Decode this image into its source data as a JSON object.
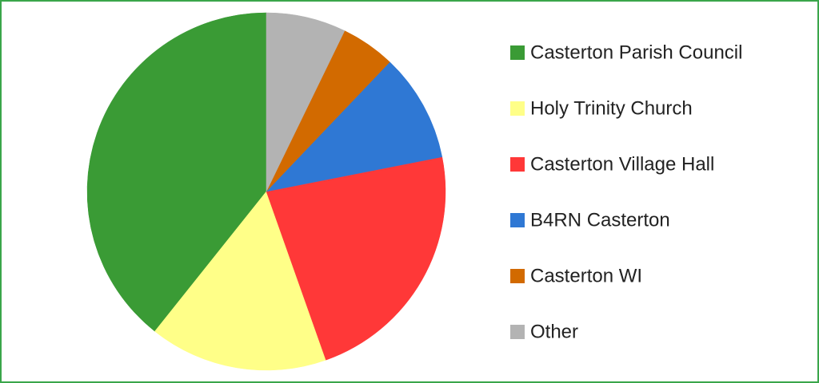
{
  "chart_data": {
    "type": "pie",
    "categories": [
      "Casterton Parish Council",
      "Holy Trinity Church",
      "Casterton Village Hall",
      "B4RN Casterton",
      "Casterton WI",
      "Other"
    ],
    "values": [
      39.3,
      16.1,
      22.7,
      9.8,
      4.9,
      7.2
    ],
    "colors": [
      "#3a9b35",
      "#ffff88",
      "#ff3838",
      "#2f78d4",
      "#d26a00",
      "#b3b3b3"
    ],
    "direction": "counterclockwise",
    "legend": "right"
  }
}
